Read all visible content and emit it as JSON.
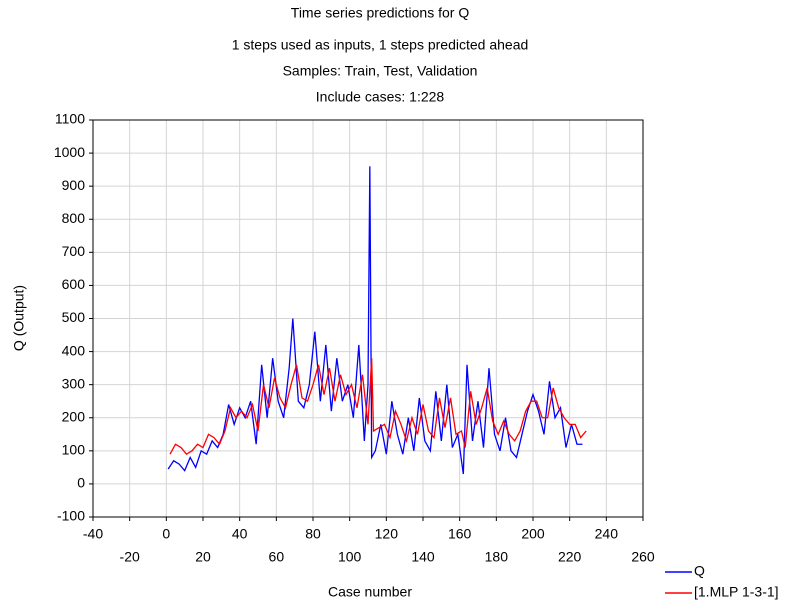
{
  "chart_data": {
    "type": "line",
    "title": "Time series predictions for Q",
    "subtitles": [
      "1 steps used as inputs, 1 steps predicted ahead",
      "Samples: Train, Test, Validation",
      "Include cases: 1:228"
    ],
    "x_label": "Case number",
    "y_label": "Q (Output)",
    "xlim": [
      -40,
      260
    ],
    "ylim": [
      -100,
      1100
    ],
    "xticks": [
      -40,
      -20,
      0,
      20,
      40,
      60,
      80,
      100,
      120,
      140,
      160,
      180,
      200,
      220,
      240,
      260
    ],
    "yticks": [
      -100,
      0,
      100,
      200,
      300,
      400,
      500,
      600,
      700,
      800,
      900,
      1000,
      1100
    ],
    "grid": true,
    "legend": "bottom-right",
    "series": [
      {
        "name": "Q",
        "color": "#0000ff",
        "x": [
          1,
          4,
          7,
          10,
          13,
          16,
          19,
          22,
          25,
          28,
          31,
          34,
          37,
          40,
          43,
          46,
          49,
          52,
          55,
          58,
          61,
          64,
          67,
          69,
          72,
          75,
          78,
          81,
          84,
          87,
          90,
          93,
          96,
          99,
          102,
          105,
          108,
          110,
          111,
          112,
          114,
          117,
          120,
          123,
          126,
          129,
          132,
          135,
          138,
          141,
          144,
          147,
          150,
          153,
          156,
          159,
          162,
          164,
          167,
          170,
          173,
          176,
          179,
          182,
          185,
          188,
          191,
          194,
          197,
          200,
          203,
          206,
          209,
          212,
          215,
          218,
          221,
          224,
          227
        ],
        "values": [
          45,
          70,
          60,
          40,
          80,
          50,
          100,
          90,
          130,
          110,
          150,
          240,
          180,
          230,
          200,
          250,
          120,
          360,
          200,
          380,
          250,
          200,
          350,
          500,
          250,
          230,
          300,
          460,
          250,
          420,
          220,
          380,
          250,
          300,
          200,
          420,
          130,
          300,
          960,
          80,
          100,
          180,
          90,
          250,
          150,
          90,
          200,
          100,
          260,
          130,
          100,
          280,
          130,
          300,
          110,
          150,
          30,
          360,
          130,
          250,
          110,
          350,
          150,
          100,
          200,
          100,
          80,
          150,
          220,
          270,
          220,
          150,
          310,
          200,
          230,
          110,
          180,
          120,
          120
        ]
      },
      {
        "name": "[1.MLP 1-3-1]",
        "color": "#ff0000",
        "x": [
          2,
          5,
          8,
          11,
          14,
          17,
          20,
          23,
          26,
          29,
          32,
          35,
          38,
          41,
          44,
          47,
          50,
          53,
          56,
          59,
          62,
          65,
          68,
          71,
          74,
          77,
          80,
          83,
          86,
          89,
          92,
          95,
          98,
          101,
          104,
          107,
          110,
          112,
          113,
          116,
          119,
          122,
          125,
          128,
          131,
          134,
          137,
          140,
          143,
          146,
          149,
          152,
          155,
          158,
          161,
          163,
          166,
          169,
          172,
          175,
          178,
          181,
          184,
          187,
          190,
          193,
          196,
          199,
          202,
          205,
          208,
          211,
          214,
          217,
          220,
          223,
          226,
          229
        ],
        "values": [
          90,
          120,
          110,
          90,
          100,
          120,
          110,
          150,
          140,
          120,
          160,
          230,
          200,
          220,
          200,
          240,
          160,
          300,
          230,
          320,
          260,
          230,
          300,
          360,
          260,
          250,
          300,
          360,
          270,
          350,
          250,
          330,
          270,
          300,
          230,
          330,
          180,
          380,
          160,
          170,
          180,
          140,
          220,
          180,
          130,
          200,
          150,
          240,
          160,
          140,
          260,
          170,
          260,
          150,
          160,
          110,
          280,
          180,
          230,
          290,
          190,
          150,
          190,
          150,
          130,
          160,
          220,
          250,
          250,
          200,
          200,
          290,
          230,
          200,
          180,
          180,
          140,
          160
        ]
      }
    ]
  }
}
